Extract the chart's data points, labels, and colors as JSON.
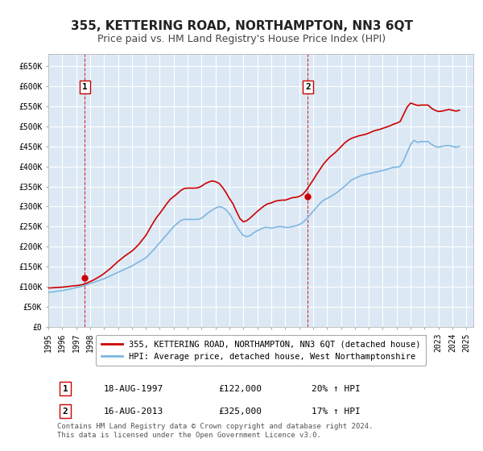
{
  "title": "355, KETTERING ROAD, NORTHAMPTON, NN3 6QT",
  "subtitle": "Price paid vs. HM Land Registry's House Price Index (HPI)",
  "background_color": "#ffffff",
  "plot_bg_color": "#dce9f5",
  "grid_color": "#ffffff",
  "red_line_color": "#cc0000",
  "blue_line_color": "#7eb6e0",
  "sale_marker_color": "#cc0000",
  "dashed_line_color": "#cc0000",
  "ylim": [
    0,
    680000
  ],
  "yticks": [
    0,
    50000,
    100000,
    150000,
    200000,
    250000,
    300000,
    350000,
    400000,
    450000,
    500000,
    550000,
    600000,
    650000
  ],
  "ytick_labels": [
    "£0",
    "£50K",
    "£100K",
    "£150K",
    "£200K",
    "£250K",
    "£300K",
    "£350K",
    "£400K",
    "£450K",
    "£500K",
    "£550K",
    "£600K",
    "£650K"
  ],
  "xlim_start": 1995.0,
  "xlim_end": 2025.5,
  "xticks": [
    1995,
    1996,
    1997,
    1998,
    1999,
    2000,
    2001,
    2002,
    2003,
    2004,
    2005,
    2006,
    2007,
    2008,
    2009,
    2010,
    2011,
    2012,
    2013,
    2014,
    2015,
    2016,
    2017,
    2018,
    2019,
    2020,
    2021,
    2022,
    2023,
    2024,
    2025
  ],
  "sale1_x": 1997.625,
  "sale1_y": 122000,
  "sale1_label": "1",
  "sale2_x": 2013.625,
  "sale2_y": 325000,
  "sale2_label": "2",
  "legend_entry1": "355, KETTERING ROAD, NORTHAMPTON, NN3 6QT (detached house)",
  "legend_entry2": "HPI: Average price, detached house, West Northamptonshire",
  "table_row1_num": "1",
  "table_row1_date": "18-AUG-1997",
  "table_row1_price": "£122,000",
  "table_row1_hpi": "20% ↑ HPI",
  "table_row2_num": "2",
  "table_row2_date": "16-AUG-2013",
  "table_row2_price": "£325,000",
  "table_row2_hpi": "17% ↑ HPI",
  "footer": "Contains HM Land Registry data © Crown copyright and database right 2024.\nThis data is licensed under the Open Government Licence v3.0.",
  "hpi_data_x": [
    1995.0,
    1995.25,
    1995.5,
    1995.75,
    1996.0,
    1996.25,
    1996.5,
    1996.75,
    1997.0,
    1997.25,
    1997.5,
    1997.75,
    1998.0,
    1998.25,
    1998.5,
    1998.75,
    1999.0,
    1999.25,
    1999.5,
    1999.75,
    2000.0,
    2000.25,
    2000.5,
    2000.75,
    2001.0,
    2001.25,
    2001.5,
    2001.75,
    2002.0,
    2002.25,
    2002.5,
    2002.75,
    2003.0,
    2003.25,
    2003.5,
    2003.75,
    2004.0,
    2004.25,
    2004.5,
    2004.75,
    2005.0,
    2005.25,
    2005.5,
    2005.75,
    2006.0,
    2006.25,
    2006.5,
    2006.75,
    2007.0,
    2007.25,
    2007.5,
    2007.75,
    2008.0,
    2008.25,
    2008.5,
    2008.75,
    2009.0,
    2009.25,
    2009.5,
    2009.75,
    2010.0,
    2010.25,
    2010.5,
    2010.75,
    2011.0,
    2011.25,
    2011.5,
    2011.75,
    2012.0,
    2012.25,
    2012.5,
    2012.75,
    2013.0,
    2013.25,
    2013.5,
    2013.75,
    2014.0,
    2014.25,
    2014.5,
    2014.75,
    2015.0,
    2015.25,
    2015.5,
    2015.75,
    2016.0,
    2016.25,
    2016.5,
    2016.75,
    2017.0,
    2017.25,
    2017.5,
    2017.75,
    2018.0,
    2018.25,
    2018.5,
    2018.75,
    2019.0,
    2019.25,
    2019.5,
    2019.75,
    2020.0,
    2020.25,
    2020.5,
    2020.75,
    2021.0,
    2021.25,
    2021.5,
    2021.75,
    2022.0,
    2022.25,
    2022.5,
    2022.75,
    2023.0,
    2023.25,
    2023.5,
    2023.75,
    2024.0,
    2024.25,
    2024.5
  ],
  "hpi_data_y": [
    86000,
    87000,
    88000,
    89500,
    90500,
    92000,
    94000,
    96000,
    98000,
    100000,
    102000,
    105000,
    108000,
    111000,
    114000,
    117000,
    120000,
    124000,
    128000,
    132000,
    136000,
    140000,
    144000,
    148000,
    152000,
    157000,
    162000,
    167000,
    172000,
    181000,
    190000,
    200000,
    210000,
    220000,
    230000,
    240000,
    250000,
    258000,
    265000,
    268000,
    268000,
    268000,
    268000,
    268000,
    271000,
    278000,
    285000,
    291000,
    296000,
    300000,
    298000,
    292000,
    282000,
    268000,
    252000,
    238000,
    228000,
    225000,
    228000,
    235000,
    240000,
    244000,
    248000,
    248000,
    246000,
    248000,
    250000,
    250000,
    248000,
    248000,
    250000,
    252000,
    255000,
    260000,
    268000,
    278000,
    288000,
    298000,
    308000,
    316000,
    320000,
    325000,
    330000,
    336000,
    343000,
    350000,
    358000,
    366000,
    370000,
    374000,
    378000,
    380000,
    382000,
    384000,
    386000,
    388000,
    390000,
    392000,
    395000,
    398000,
    398000,
    400000,
    415000,
    435000,
    455000,
    465000,
    460000,
    462000,
    462000,
    462000,
    455000,
    450000,
    448000,
    450000,
    452000,
    452000,
    450000,
    448000,
    450000
  ],
  "price_data_x": [
    1995.0,
    1995.25,
    1995.5,
    1995.75,
    1996.0,
    1996.25,
    1996.5,
    1996.75,
    1997.0,
    1997.25,
    1997.5,
    1997.75,
    1998.0,
    1998.25,
    1998.5,
    1998.75,
    1999.0,
    1999.25,
    1999.5,
    1999.75,
    2000.0,
    2000.25,
    2000.5,
    2000.75,
    2001.0,
    2001.25,
    2001.5,
    2001.75,
    2002.0,
    2002.25,
    2002.5,
    2002.75,
    2003.0,
    2003.25,
    2003.5,
    2003.75,
    2004.0,
    2004.25,
    2004.5,
    2004.75,
    2005.0,
    2005.25,
    2005.5,
    2005.75,
    2006.0,
    2006.25,
    2006.5,
    2006.75,
    2007.0,
    2007.25,
    2007.5,
    2007.75,
    2008.0,
    2008.25,
    2008.5,
    2008.75,
    2009.0,
    2009.25,
    2009.5,
    2009.75,
    2010.0,
    2010.25,
    2010.5,
    2010.75,
    2011.0,
    2011.25,
    2011.5,
    2011.75,
    2012.0,
    2012.25,
    2012.5,
    2012.75,
    2013.0,
    2013.25,
    2013.5,
    2013.75,
    2014.0,
    2014.25,
    2014.5,
    2014.75,
    2015.0,
    2015.25,
    2015.5,
    2015.75,
    2016.0,
    2016.25,
    2016.5,
    2016.75,
    2017.0,
    2017.25,
    2017.5,
    2017.75,
    2018.0,
    2018.25,
    2018.5,
    2018.75,
    2019.0,
    2019.25,
    2019.5,
    2019.75,
    2020.0,
    2020.25,
    2020.5,
    2020.75,
    2021.0,
    2021.25,
    2021.5,
    2021.75,
    2022.0,
    2022.25,
    2022.5,
    2022.75,
    2023.0,
    2023.25,
    2023.5,
    2023.75,
    2024.0,
    2024.25,
    2024.5
  ],
  "price_data_y": [
    97000,
    97500,
    98000,
    98500,
    99000,
    100000,
    101000,
    102000,
    103000,
    104000,
    106000,
    109000,
    113000,
    117000,
    122000,
    127000,
    133000,
    140000,
    147000,
    155000,
    163000,
    170000,
    177000,
    183000,
    189000,
    197000,
    206000,
    217000,
    228000,
    243000,
    258000,
    272000,
    283000,
    295000,
    307000,
    318000,
    325000,
    332000,
    340000,
    345000,
    346000,
    346000,
    346000,
    347000,
    351000,
    357000,
    361000,
    364000,
    362000,
    358000,
    348000,
    335000,
    320000,
    307000,
    288000,
    270000,
    262000,
    265000,
    272000,
    280000,
    288000,
    295000,
    302000,
    307000,
    309000,
    313000,
    315000,
    316000,
    316000,
    319000,
    322000,
    323000,
    325000,
    330000,
    340000,
    353000,
    366000,
    380000,
    393000,
    406000,
    416000,
    425000,
    432000,
    440000,
    449000,
    458000,
    465000,
    470000,
    473000,
    476000,
    478000,
    480000,
    483000,
    487000,
    490000,
    492000,
    495000,
    498000,
    501000,
    505000,
    508000,
    512000,
    530000,
    548000,
    558000,
    555000,
    552000,
    553000,
    553000,
    553000,
    545000,
    540000,
    537000,
    538000,
    540000,
    542000,
    540000,
    538000,
    540000
  ]
}
